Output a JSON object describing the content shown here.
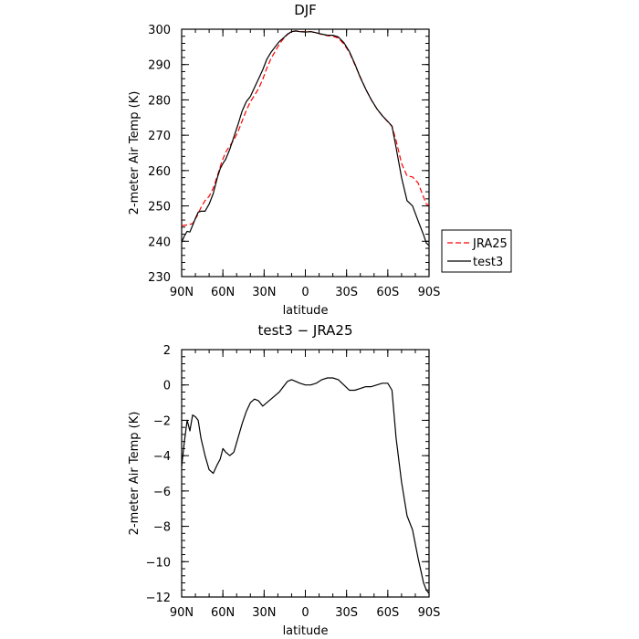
{
  "chart_data": [
    {
      "type": "line",
      "title": "DJF",
      "xlabel": "latitude",
      "ylabel": "2-meter Air Temp (K)",
      "xlim": [
        -90,
        90
      ],
      "ylim": [
        230,
        300
      ],
      "xticks": [
        -90,
        -60,
        -30,
        0,
        30,
        60,
        90
      ],
      "xtick_labels": [
        "90N",
        "60N",
        "30N",
        "0",
        "30S",
        "60S",
        "90S"
      ],
      "yticks": [
        230,
        240,
        250,
        260,
        270,
        280,
        290,
        300
      ],
      "ytick_labels": [
        "230",
        "240",
        "250",
        "260",
        "270",
        "280",
        "290",
        "300"
      ],
      "legend": {
        "placement": "right",
        "entries": [
          {
            "label": "JRA25",
            "color": "#ff0000",
            "dash": "dashed"
          },
          {
            "label": "test3",
            "color": "#000000",
            "dash": "solid"
          }
        ]
      },
      "series": [
        {
          "name": "JRA25",
          "color": "#ff0000",
          "dash": "dashed",
          "x": [
            -90,
            -85,
            -82,
            -79,
            -76,
            -73,
            -70,
            -67,
            -64,
            -61,
            -58,
            -55,
            -52,
            -49,
            -46,
            -43,
            -40,
            -37,
            -34,
            -31,
            -28,
            -25,
            -22,
            -19,
            -16,
            -13,
            -10,
            -7,
            -4,
            0,
            4,
            8,
            12,
            16,
            20,
            24,
            28,
            32,
            36,
            40,
            44,
            48,
            52,
            56,
            60,
            63,
            66,
            70,
            74,
            78,
            82,
            86,
            88,
            90
          ],
          "y": [
            244.4,
            244.7,
            245.0,
            247.0,
            249.5,
            251.5,
            252.7,
            255.0,
            258.5,
            262.3,
            265.2,
            267.0,
            268.7,
            271.0,
            274.0,
            277.0,
            279.5,
            281.3,
            283.2,
            285.8,
            289.0,
            291.7,
            293.7,
            295.7,
            297.3,
            298.5,
            299.3,
            299.5,
            299.3,
            299.3,
            299.3,
            299.0,
            298.5,
            298.2,
            298.0,
            297.5,
            295.8,
            293.5,
            290.0,
            286.5,
            283.0,
            280.0,
            277.5,
            275.5,
            273.8,
            272.5,
            268.5,
            262.0,
            258.5,
            258.2,
            256.5,
            252.5,
            250.5,
            250.2
          ]
        },
        {
          "name": "test3",
          "color": "#000000",
          "dash": "solid",
          "x": [
            -90,
            -88,
            -86,
            -84,
            -82,
            -80,
            -78,
            -76,
            -73,
            -70,
            -67,
            -64,
            -62,
            -60,
            -58,
            -55,
            -52,
            -49,
            -46,
            -43,
            -40,
            -37,
            -34,
            -31,
            -28,
            -25,
            -22,
            -19,
            -16,
            -13,
            -10,
            -7,
            -4,
            0,
            4,
            8,
            12,
            16,
            20,
            24,
            28,
            32,
            36,
            40,
            44,
            48,
            52,
            56,
            60,
            63,
            66,
            70,
            74,
            78,
            82,
            86,
            88,
            90
          ],
          "y": [
            239.8,
            241.5,
            242.8,
            242.6,
            244.5,
            246.5,
            248.2,
            248.5,
            248.5,
            250.5,
            253.5,
            258.0,
            260.5,
            262.0,
            263.2,
            266.0,
            269.5,
            273.0,
            276.8,
            279.5,
            281.0,
            283.5,
            286.0,
            288.5,
            291.5,
            293.5,
            295.0,
            296.5,
            297.5,
            298.6,
            299.3,
            299.5,
            299.3,
            299.2,
            299.3,
            299.0,
            298.6,
            298.3,
            298.3,
            297.8,
            296.2,
            293.7,
            290.2,
            286.3,
            283.0,
            280.0,
            277.5,
            275.5,
            273.9,
            272.6,
            266.5,
            258.0,
            251.5,
            250.0,
            245.8,
            241.8,
            239.5,
            238.8
          ]
        }
      ]
    },
    {
      "type": "line",
      "title": "test3  −  JRA25",
      "xlabel": "latitude",
      "ylabel": "2-meter Air Temp (K)",
      "xlim": [
        -90,
        90
      ],
      "ylim": [
        -12,
        2
      ],
      "xticks": [
        -90,
        -60,
        -30,
        0,
        30,
        60,
        90
      ],
      "xtick_labels": [
        "90N",
        "60N",
        "30N",
        "0",
        "30S",
        "60S",
        "90S"
      ],
      "yticks": [
        -12,
        -10,
        -8,
        -6,
        -4,
        -2,
        0,
        2
      ],
      "ytick_labels": [
        "−12",
        "−10",
        "−8",
        "−6",
        "−4",
        "−2",
        "0",
        "2"
      ],
      "series": [
        {
          "color": "#000000",
          "dash": "solid",
          "x": [
            -90,
            -88,
            -86,
            -84,
            -82,
            -80,
            -78,
            -76,
            -73,
            -70,
            -67,
            -64,
            -62,
            -60,
            -58,
            -55,
            -52,
            -49,
            -46,
            -43,
            -40,
            -37,
            -34,
            -31,
            -28,
            -25,
            -22,
            -19,
            -16,
            -13,
            -10,
            -7,
            -4,
            0,
            4,
            8,
            12,
            16,
            20,
            24,
            28,
            32,
            36,
            40,
            44,
            48,
            52,
            56,
            60,
            63,
            66,
            70,
            74,
            78,
            82,
            86,
            88,
            90
          ],
          "y": [
            -4.6,
            -3.2,
            -2.0,
            -2.6,
            -1.7,
            -1.8,
            -2.0,
            -3.0,
            -4.0,
            -4.8,
            -5.0,
            -4.5,
            -4.2,
            -3.6,
            -3.8,
            -4.0,
            -3.8,
            -3.0,
            -2.2,
            -1.5,
            -1.0,
            -0.8,
            -0.9,
            -1.2,
            -1.0,
            -0.8,
            -0.6,
            -0.4,
            -0.1,
            0.2,
            0.3,
            0.2,
            0.1,
            0.0,
            0.0,
            0.1,
            0.3,
            0.4,
            0.4,
            0.3,
            0.0,
            -0.3,
            -0.3,
            -0.2,
            -0.1,
            -0.1,
            0.0,
            0.1,
            0.1,
            -0.3,
            -3.0,
            -5.5,
            -7.4,
            -8.2,
            -9.8,
            -11.2,
            -11.6,
            -11.8
          ]
        }
      ]
    }
  ]
}
